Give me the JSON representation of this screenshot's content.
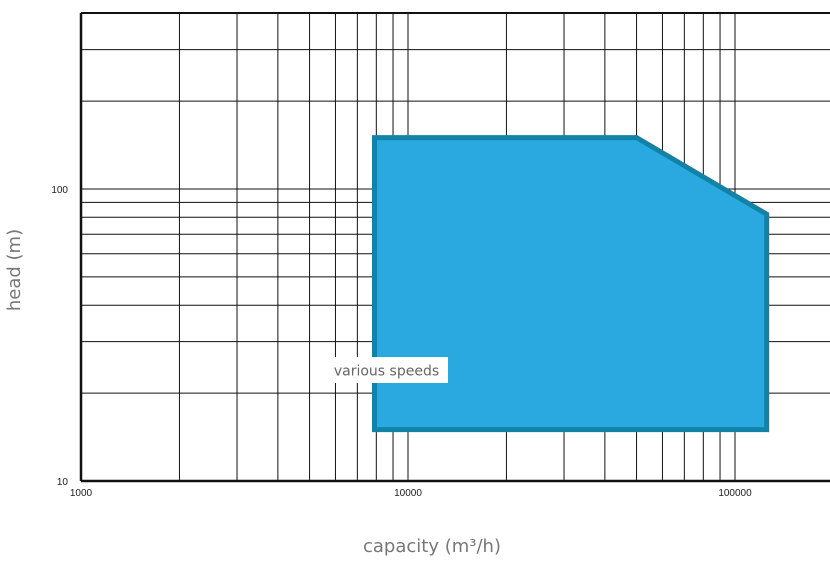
{
  "chart_data": {
    "type": "area",
    "x_scale": "log",
    "y_scale": "log",
    "xlabel": "capacity (m³/h)",
    "ylabel": "head (m)",
    "xlim": [
      1000,
      430000
    ],
    "ylim": [
      10,
      550
    ],
    "x_tick_labels": [
      {
        "value": 1000,
        "label": "1000"
      },
      {
        "value": 10000,
        "label": "10000"
      },
      {
        "value": 100000,
        "label": "100000"
      }
    ],
    "y_tick_labels": [
      {
        "value": 10,
        "label": "10"
      },
      {
        "value": 100,
        "label": "100"
      }
    ],
    "grid": true,
    "region": {
      "label": "various speeds",
      "points": [
        {
          "x": 7900,
          "y": 15
        },
        {
          "x": 7900,
          "y": 150
        },
        {
          "x": 50000,
          "y": 150
        },
        {
          "x": 125000,
          "y": 82
        },
        {
          "x": 125000,
          "y": 15
        }
      ]
    },
    "colors": {
      "fill": "#29a9e0",
      "stroke": "#1183a8",
      "grid": "#111111"
    }
  }
}
